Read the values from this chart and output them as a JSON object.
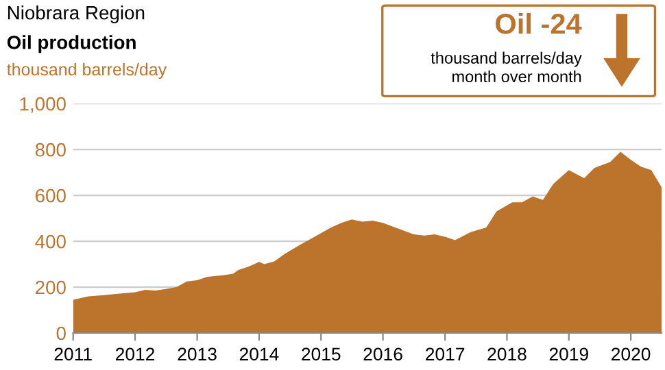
{
  "chart_data": {
    "type": "area",
    "title": "Niobrara Region",
    "subtitle": "Oil production",
    "ylabel": "thousand barrels/day",
    "annotations": [
      "Oil -24",
      "thousand barrels/day\nmonth over month"
    ],
    "x": [
      "2011-01",
      "2011-04",
      "2011-07",
      "2011-10",
      "2012-01",
      "2012-03",
      "2012-05",
      "2012-07",
      "2012-09",
      "2012-11",
      "2013-01",
      "2013-03",
      "2013-06",
      "2013-08",
      "2013-09",
      "2013-11",
      "2014-01",
      "2014-02",
      "2014-04",
      "2014-06",
      "2014-09",
      "2014-11",
      "2015-01",
      "2015-03",
      "2015-05",
      "2015-07",
      "2015-09",
      "2015-11",
      "2016-01",
      "2016-04",
      "2016-07",
      "2016-09",
      "2016-11",
      "2017-01",
      "2017-03",
      "2017-06",
      "2017-09",
      "2017-11",
      "2018-02",
      "2018-04",
      "2018-06",
      "2018-08",
      "2018-10",
      "2018-12",
      "2019-01",
      "2019-04",
      "2019-06",
      "2019-09",
      "2019-11",
      "2020-01",
      "2020-03",
      "2020-05",
      "2020-07"
    ],
    "series": [
      {
        "color": "#bc742c",
        "values": [
          145,
          160,
          165,
          172,
          178,
          188,
          185,
          192,
          200,
          225,
          230,
          245,
          252,
          258,
          275,
          290,
          310,
          300,
          312,
          345,
          385,
          410,
          435,
          460,
          480,
          495,
          485,
          490,
          480,
          455,
          430,
          425,
          430,
          420,
          405,
          440,
          460,
          530,
          570,
          570,
          595,
          580,
          650,
          690,
          710,
          675,
          720,
          745,
          790,
          755,
          725,
          710,
          635
        ]
      }
    ],
    "xlim": [
      "2011-01",
      "2020-07"
    ],
    "xticks": [
      {
        "value": "2011-01",
        "label": "2011"
      },
      {
        "value": "2012-01",
        "label": "2012"
      },
      {
        "value": "2013-01",
        "label": "2013"
      },
      {
        "value": "2014-01",
        "label": "2014"
      },
      {
        "value": "2015-01",
        "label": "2015"
      },
      {
        "value": "2016-01",
        "label": "2016"
      },
      {
        "value": "2017-01",
        "label": "2017"
      },
      {
        "value": "2018-01",
        "label": "2018"
      },
      {
        "value": "2019-01",
        "label": "2019"
      },
      {
        "value": "2020-01",
        "label": "2020"
      }
    ],
    "ylim": [
      0,
      1000
    ],
    "yticks": [
      0,
      200,
      400,
      600,
      800,
      {
        "value": 1000,
        "label": "1,000"
      }
    ],
    "grid": "y"
  }
}
